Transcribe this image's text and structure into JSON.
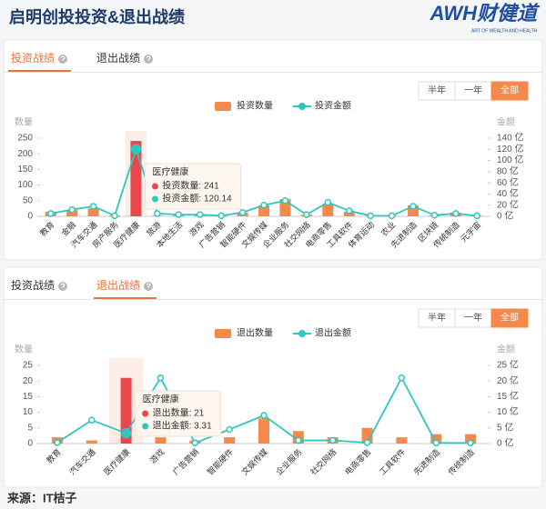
{
  "header": {
    "title": "启明创投投资&退出战绩",
    "logo": "AWH财健道",
    "logo_sub": "ART OF WEALTH AND HEALTH"
  },
  "chart_data": [
    {
      "type": "bar_line",
      "tabs": [
        "投资战绩",
        "退出战绩"
      ],
      "active_tab": 0,
      "buttons": [
        "半年",
        "一年",
        "全部"
      ],
      "active_button": 2,
      "y_title": "数量",
      "y2_title": "金额",
      "categories": [
        "教育",
        "金融",
        "汽车交通",
        "房产服务",
        "医疗健康",
        "旅游",
        "本地生活",
        "游戏",
        "广告营销",
        "智能硬件",
        "文娱传媒",
        "企业服务",
        "社交网络",
        "电商零售",
        "工具软件",
        "体育运动",
        "农业",
        "先进制造",
        "区块链",
        "传统制造",
        "元宇宙"
      ],
      "series": [
        {
          "name": "投资数量",
          "type": "bar",
          "color": "#f5894b",
          "highlight_color": "#e8484c",
          "values": [
            15,
            20,
            25,
            3,
            241,
            2,
            3,
            5,
            3,
            12,
            35,
            55,
            5,
            40,
            15,
            2,
            2,
            35,
            3,
            12,
            2
          ]
        },
        {
          "name": "投资金额",
          "type": "line",
          "axis": "y2",
          "color": "#2ec7c0",
          "values": [
            5,
            12,
            18,
            1,
            120.14,
            5,
            3,
            3,
            1,
            7,
            20,
            28,
            3,
            25,
            10,
            1,
            1,
            18,
            2,
            5,
            1
          ]
        }
      ],
      "ylim": [
        0,
        250
      ],
      "yticks": [
        0,
        50,
        100,
        150,
        200,
        250
      ],
      "y2lim": [
        0,
        140
      ],
      "y2ticks": [
        {
          "value": 0,
          "label": "0 亿"
        },
        {
          "value": 20,
          "label": "20 亿"
        },
        {
          "value": 40,
          "label": "40 亿"
        },
        {
          "value": 60,
          "label": "60 亿"
        },
        {
          "value": 80,
          "label": "80 亿"
        },
        {
          "value": 100,
          "label": "100 亿"
        },
        {
          "value": 120,
          "label": "120 亿"
        },
        {
          "value": 140,
          "label": "140 亿"
        }
      ],
      "tooltip": {
        "category": "医疗健康",
        "lines": [
          "投资数量: 241",
          "投资金额: 120.14"
        ]
      }
    },
    {
      "type": "bar_line",
      "tabs": [
        "投资战绩",
        "退出战绩"
      ],
      "active_tab": 1,
      "buttons": [
        "半年",
        "一年",
        "全部"
      ],
      "active_button": 2,
      "y_title": "数量",
      "y2_title": "金额",
      "categories": [
        "教育",
        "汽车交通",
        "医疗健康",
        "游戏",
        "广告营销",
        "智能硬件",
        "文娱传媒",
        "企业服务",
        "社交网络",
        "电商零售",
        "工具软件",
        "先进制造",
        "传统制造"
      ],
      "series": [
        {
          "name": "退出数量",
          "type": "bar",
          "color": "#f5894b",
          "highlight_color": "#e8484c",
          "values": [
            2,
            1,
            21,
            2,
            1,
            2,
            8,
            4,
            2,
            5,
            2,
            3,
            3
          ]
        },
        {
          "name": "退出金额",
          "type": "line",
          "axis": "y2",
          "color": "#2ec7c0",
          "values": [
            0.3,
            7.5,
            3.31,
            21,
            0.2,
            4.5,
            9,
            1,
            1,
            0.3,
            21,
            0.2,
            0.2
          ]
        }
      ],
      "ylim": [
        0,
        25
      ],
      "yticks": [
        0,
        5,
        10,
        15,
        20,
        25
      ],
      "y2lim": [
        0,
        25
      ],
      "y2ticks": [
        {
          "value": 0,
          "label": "0 亿"
        },
        {
          "value": 5,
          "label": "5 亿"
        },
        {
          "value": 10,
          "label": "10 亿"
        },
        {
          "value": 15,
          "label": "15 亿"
        },
        {
          "value": 20,
          "label": "20 亿"
        },
        {
          "value": 25,
          "label": "25 亿"
        }
      ],
      "tooltip": {
        "category": "医疗健康",
        "lines": [
          "退出数量: 21",
          "退出金额: 3.31"
        ]
      }
    }
  ],
  "footer": "来源：IT桔子"
}
